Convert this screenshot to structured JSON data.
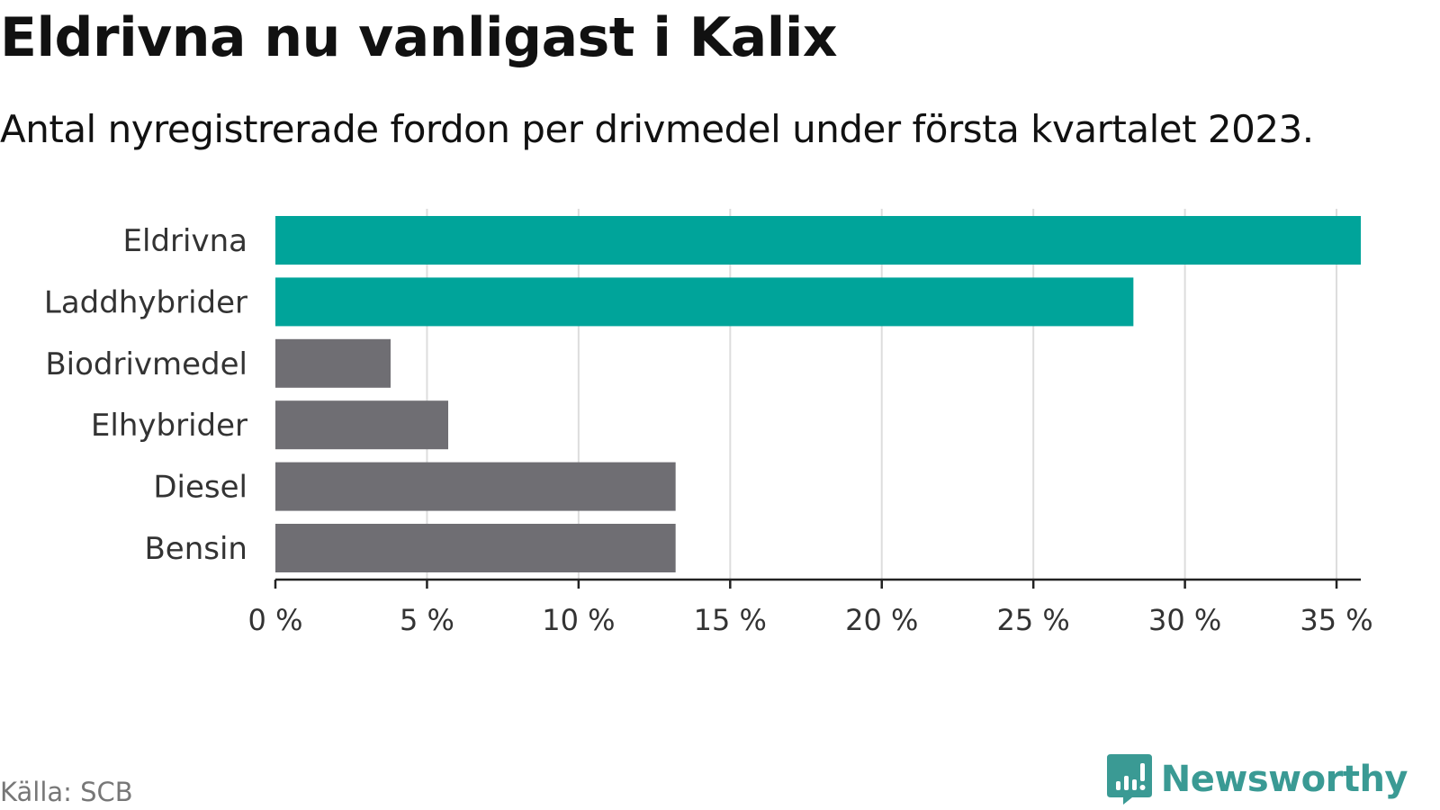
{
  "title": "Eldrivna nu vanligast i Kalix",
  "subtitle": "Antal nyregistrerade fordon per drivmedel under första kvartalet 2023.",
  "source": "Källa: SCB",
  "brand": {
    "name": "Newsworthy",
    "logo_icon": "newsworthy-logo-icon"
  },
  "colors": {
    "highlight": "#00a49a",
    "default": "#6f6e73",
    "brand": "#3a9a94",
    "grid": "#dddddd",
    "axis": "#222222"
  },
  "chart_data": {
    "type": "bar",
    "orientation": "horizontal",
    "categories": [
      "Eldrivna",
      "Laddhybrider",
      "Biodrivmedel",
      "Elhybrider",
      "Diesel",
      "Bensin"
    ],
    "values": [
      35.8,
      28.3,
      3.8,
      5.7,
      13.2,
      13.2
    ],
    "highlighted": [
      true,
      true,
      false,
      false,
      false,
      false
    ],
    "xlim": [
      0,
      35.8
    ],
    "xticks": [
      0,
      5,
      10,
      15,
      20,
      25,
      30,
      35
    ],
    "tick_labels": [
      "0 %",
      "5 %",
      "10 %",
      "15 %",
      "20 %",
      "25 %",
      "30 %",
      "35 %"
    ],
    "grid": true,
    "xlabel": "",
    "ylabel": ""
  }
}
